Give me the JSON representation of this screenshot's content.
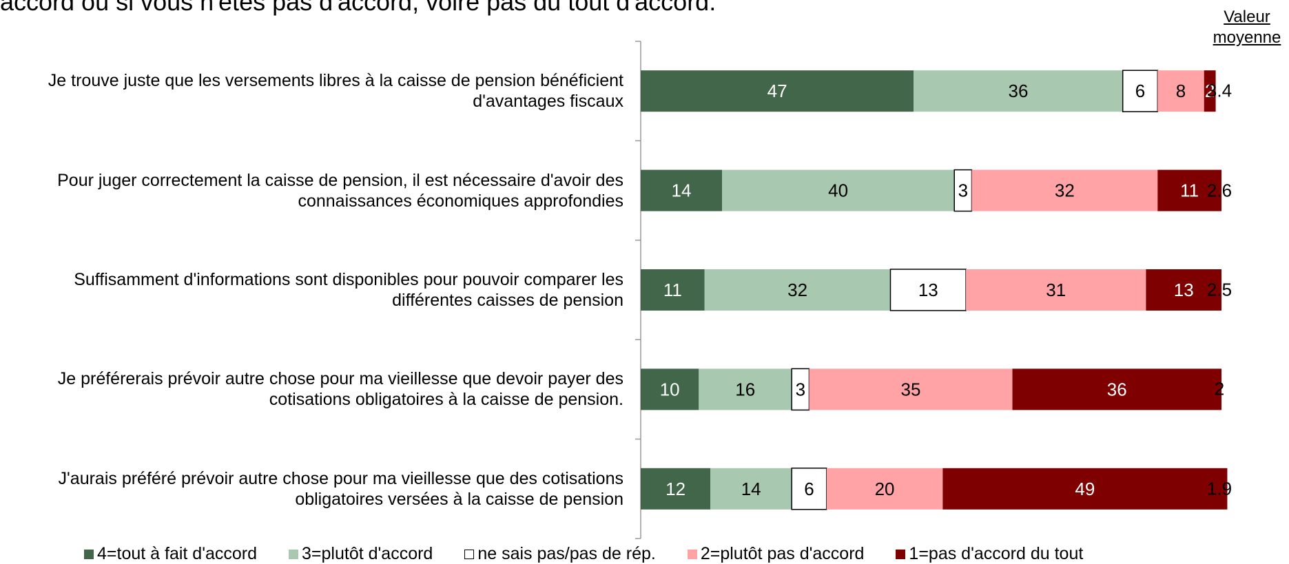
{
  "chart_data": {
    "type": "stacked_bar_horizontal",
    "title": "accord ou si vous n'êtes pas d'accord, voire pas du tout d'accord.",
    "categories": [
      "Je trouve juste que les versements libres à la caisse de pension bénéficient d'avantages fiscaux",
      "Pour juger correctement la caisse de pension, il est nécessaire d'avoir des connaissances économiques approfondies",
      "Suffisamment d'informations sont disponibles pour pouvoir comparer les différentes caisses de pension",
      "Je préférerais prévoir autre chose pour ma vieillesse que devoir payer des cotisations obligatoires à la caisse de pension.",
      "J'aurais préféré prévoir autre chose pour ma vieillesse que des cotisations obligatoires versées à la caisse de pension"
    ],
    "series": [
      {
        "name": "4=tout à fait d'accord",
        "color": "#41664a",
        "text_color": "#ffffff",
        "values": [
          47,
          14,
          11,
          10,
          12
        ]
      },
      {
        "name": "3=plutôt d'accord",
        "color": "#a8c8b0",
        "text_color": "#000000",
        "values": [
          36,
          40,
          32,
          16,
          14
        ]
      },
      {
        "name": "ne sais pas/pas de rép.",
        "color": "#ffffff",
        "text_color": "#000000",
        "values": [
          6,
          3,
          13,
          3,
          6
        ]
      },
      {
        "name": "2=plutôt pas d'accord",
        "color": "#ffa3a6",
        "text_color": "#000000",
        "values": [
          8,
          32,
          31,
          35,
          20
        ]
      },
      {
        "name": "1=pas d'accord du tout",
        "color": "#7f0000",
        "text_color": "#ffffff",
        "values": [
          2,
          11,
          13,
          36,
          49
        ]
      }
    ],
    "xlim": [
      0,
      100
    ],
    "mean_header": "Valeur moyenne",
    "mean_values": [
      3.4,
      2.6,
      2.5,
      2,
      1.9
    ]
  }
}
